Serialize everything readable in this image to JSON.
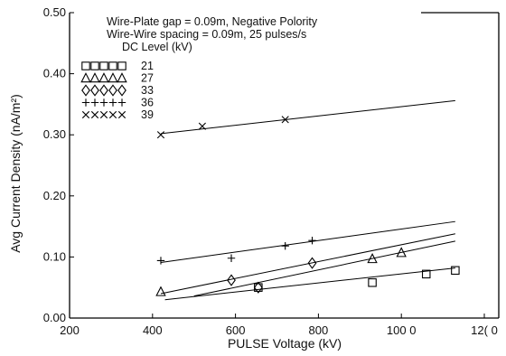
{
  "chart_data": {
    "type": "scatter",
    "title": "",
    "xlabel": "PULSE Voltage (kV)",
    "ylabel": "Avg Current Density (nA/m²)",
    "xlim": [
      200,
      1200
    ],
    "ylim": [
      0.0,
      0.5
    ],
    "x_ticks": [
      200,
      400,
      600,
      800,
      1000,
      1200
    ],
    "x_tick_labels": [
      "200",
      "400",
      "600",
      "800",
      "100 0",
      "12( 0"
    ],
    "y_ticks": [
      0.0,
      0.1,
      0.2,
      0.3,
      0.4,
      0.5
    ],
    "y_tick_labels": [
      "0.00",
      "0.10",
      "0.20",
      "0.30",
      "0.40",
      "0.50"
    ],
    "annotations": [
      "Wire-Plate gap = 0.09m, Negative Polority",
      "Wire-Wire spacing = 0.09m, 25 pulses/s"
    ],
    "legend_title": "DC Level (kV)",
    "legend_position": "top-left",
    "grid": false,
    "series": [
      {
        "name": "21",
        "marker": "square",
        "points": [
          [
            655,
            0.05
          ],
          [
            930,
            0.058
          ],
          [
            1060,
            0.072
          ],
          [
            1130,
            0.078
          ]
        ],
        "fit": [
          [
            430,
            0.03
          ],
          [
            1130,
            0.082
          ]
        ]
      },
      {
        "name": "27",
        "marker": "triangle",
        "points": [
          [
            420,
            0.043
          ],
          [
            930,
            0.097
          ],
          [
            1000,
            0.107
          ]
        ],
        "fit": [
          [
            420,
            0.04
          ],
          [
            1130,
            0.138
          ]
        ]
      },
      {
        "name": "33",
        "marker": "diamond",
        "points": [
          [
            590,
            0.062
          ],
          [
            655,
            0.05
          ],
          [
            785,
            0.09
          ]
        ],
        "fit": [
          [
            500,
            0.036
          ],
          [
            1130,
            0.126
          ]
        ]
      },
      {
        "name": "36",
        "marker": "plus",
        "points": [
          [
            420,
            0.094
          ],
          [
            590,
            0.098
          ],
          [
            720,
            0.118
          ],
          [
            785,
            0.127
          ]
        ],
        "fit": [
          [
            420,
            0.091
          ],
          [
            1130,
            0.158
          ]
        ]
      },
      {
        "name": "39",
        "marker": "x",
        "points": [
          [
            420,
            0.3
          ],
          [
            520,
            0.314
          ],
          [
            720,
            0.325
          ]
        ],
        "fit": [
          [
            420,
            0.302
          ],
          [
            1130,
            0.356
          ]
        ]
      }
    ]
  }
}
